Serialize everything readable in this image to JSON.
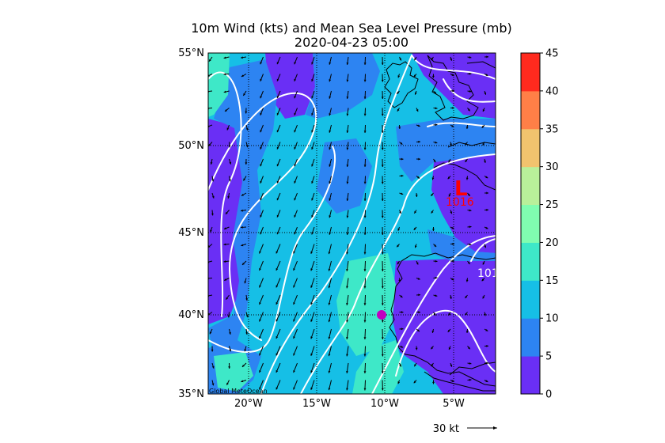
{
  "title": {
    "line1": "10m Wind (kts) and Mean Sea Level Pressure (mb)",
    "line2": "2020-04-23 05:00"
  },
  "map": {
    "lat_range": [
      35,
      55
    ],
    "lon_range": [
      -23,
      -2
    ],
    "lat_ticks": [
      {
        "value": 55,
        "label": "55°N"
      },
      {
        "value": 50,
        "label": "50°N"
      },
      {
        "value": 45,
        "label": "45°N"
      },
      {
        "value": 40,
        "label": "40°N"
      },
      {
        "value": 35,
        "label": "35°N"
      }
    ],
    "lon_ticks": [
      {
        "value": -20,
        "label": "20°W"
      },
      {
        "value": -15,
        "label": "15°W"
      },
      {
        "value": -10,
        "label": "10°W"
      },
      {
        "value": -5,
        "label": "5°W"
      }
    ],
    "credit": "Global MeteOcean",
    "low_marker": {
      "symbol": "L",
      "pressure_label": "1016",
      "lat": 47.6,
      "lon": -4.6,
      "color": "#ff0000"
    },
    "isobar_label": {
      "text": "101",
      "lat": 42.4,
      "lon": -3.0
    },
    "station": {
      "lat": 40.0,
      "lon": -10.2,
      "color": "#c000c0"
    },
    "grid": "dotted"
  },
  "colorbar": {
    "levels": [
      0,
      5,
      10,
      15,
      20,
      25,
      30,
      35,
      40,
      45
    ],
    "tick_labels": [
      "0",
      "5",
      "10",
      "15",
      "20",
      "25",
      "30",
      "35",
      "40",
      "45"
    ],
    "colors": [
      "#6a2ff5",
      "#2d84f2",
      "#16bfe6",
      "#3ee8c8",
      "#80fdb0",
      "#b9f09a",
      "#f1c36e",
      "#ff7f47",
      "#ff2a1e"
    ]
  },
  "quiver_key": {
    "label": "30 kt"
  }
}
